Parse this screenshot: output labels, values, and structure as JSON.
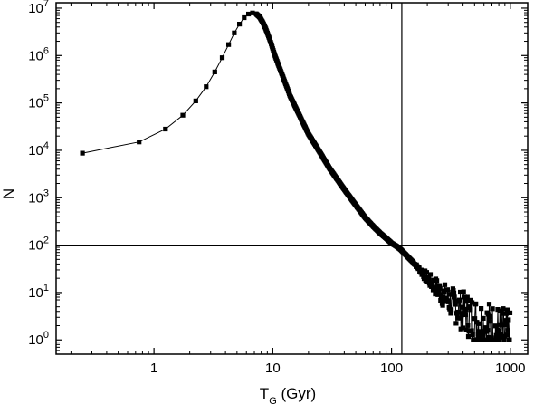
{
  "chart_data": {
    "type": "scatter",
    "title": "",
    "xlabel": "T",
    "xlabel_sub": "G",
    "xlabel_unit": " (Gyr)",
    "ylabel": "N",
    "xscale": "log",
    "yscale": "log",
    "xlim": [
      0.15,
      1400
    ],
    "ylim": [
      0.5,
      13000000
    ],
    "grid": false,
    "legend": "none",
    "marker_color": "#000000",
    "x_ticks": [
      {
        "value": 1,
        "label": "1"
      },
      {
        "value": 10,
        "label": "10"
      },
      {
        "value": 100,
        "label": "100"
      },
      {
        "value": 1000,
        "label": "1000"
      }
    ],
    "y_ticks": [
      {
        "value": 1,
        "base": "10",
        "exp": "0"
      },
      {
        "value": 10,
        "base": "10",
        "exp": "1"
      },
      {
        "value": 100,
        "base": "10",
        "exp": "2"
      },
      {
        "value": 1000,
        "base": "10",
        "exp": "3"
      },
      {
        "value": 10000,
        "base": "10",
        "exp": "4"
      },
      {
        "value": 100000,
        "base": "10",
        "exp": "5"
      },
      {
        "value": 1000000,
        "base": "10",
        "exp": "6"
      },
      {
        "value": 10000000,
        "base": "10",
        "exp": "7"
      }
    ],
    "reference_lines": {
      "vertical_x": 122,
      "horizontal_y": 100
    },
    "series": [
      {
        "x": [
          0.25,
          0.75,
          1.25,
          1.75,
          2.25,
          2.75,
          3.25,
          3.75,
          4.25,
          4.75,
          5.25,
          5.75,
          6.25,
          6.75,
          7.25,
          7.75,
          8.25,
          8.75,
          9.25,
          9.75,
          10.5,
          11.5,
          12.5,
          14,
          16,
          18,
          20,
          25,
          30,
          40,
          50,
          60,
          70,
          80,
          90,
          100,
          110,
          120,
          130,
          150,
          170,
          200,
          230,
          260,
          300,
          350,
          400,
          450,
          500,
          550,
          600,
          650,
          700,
          750,
          800,
          850,
          900,
          950,
          1000
        ],
        "y": [
          8700,
          15000,
          28000,
          55000,
          110000,
          220000,
          450000,
          900000,
          1700000,
          3000000,
          4600000,
          6300000,
          7500000,
          7900000,
          7600000,
          6500000,
          5000000,
          3600000,
          2500000,
          1700000,
          950000,
          520000,
          300000,
          140000,
          70000,
          38000,
          22000,
          9000,
          4200,
          1500,
          700,
          380,
          250,
          180,
          140,
          110,
          95,
          80,
          65,
          45,
          32,
          20,
          14,
          10,
          7,
          5,
          4,
          3.2,
          2.6,
          2.2,
          2,
          1.8,
          1.6,
          1.5,
          1.4,
          1.3,
          1.2,
          1.1,
          1
        ]
      }
    ],
    "noise_from_x": 150
  }
}
